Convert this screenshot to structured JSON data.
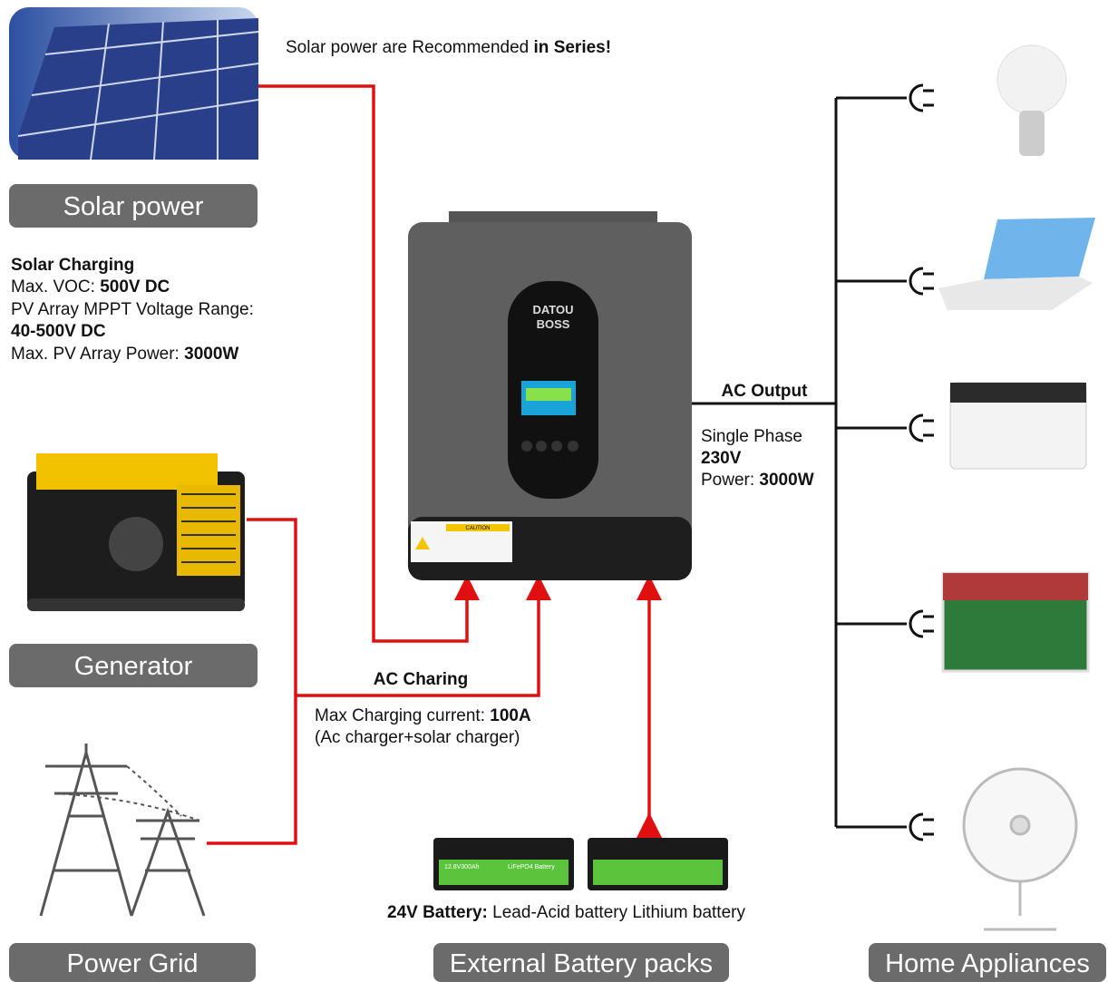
{
  "header": {
    "note": "Solar power are Recommended",
    "note_bold": "in Series!"
  },
  "sources": {
    "solar": {
      "label": "Solar power",
      "title": "Solar Charging",
      "voc_label": "Max. VOC:",
      "voc_value": "500V DC",
      "range_label": "PV Array MPPT Voltage Range:",
      "range_value": "40-500V DC",
      "power_label": "Max. PV Array Power:",
      "power_value": "3000W"
    },
    "generator": {
      "label": "Generator"
    },
    "grid": {
      "label": "Power Grid"
    }
  },
  "ac_charging": {
    "title": "AC Charing",
    "current_label": "Max Charging current:",
    "current_value": "100A",
    "note": "(Ac charger+solar charger)"
  },
  "inverter": {
    "brand_top": "DATOU",
    "brand_bottom": "BOSS",
    "caution": "CAUTION"
  },
  "ac_output": {
    "title": "AC Output",
    "phase": "Single Phase",
    "voltage": "230V",
    "power_label": "Power:",
    "power_value": "3000W"
  },
  "battery": {
    "title": "24V Battery:",
    "types": "Lead-Acid battery Lithium battery",
    "label": "External Battery packs",
    "model": "12.8V300Ah",
    "chem": "LiFePO4 Battery"
  },
  "appliances": {
    "label": "Home Appliances"
  }
}
